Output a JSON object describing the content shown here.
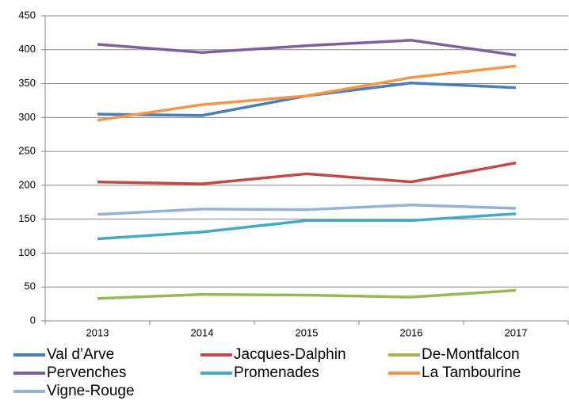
{
  "chart_data": {
    "type": "line",
    "categories": [
      "2013",
      "2014",
      "2015",
      "2016",
      "2017"
    ],
    "series": [
      {
        "name": "Val d’Arve",
        "color": "#4a7ebb",
        "values": [
          305,
          303,
          332,
          351,
          344
        ]
      },
      {
        "name": "Jacques-Dalphin",
        "color": "#be4b48",
        "values": [
          205,
          202,
          217,
          205,
          233
        ]
      },
      {
        "name": "De-Montfalcon",
        "color": "#98b954",
        "values": [
          33,
          39,
          38,
          35,
          45
        ]
      },
      {
        "name": "Pervenches",
        "color": "#7d60a0",
        "values": [
          408,
          396,
          406,
          414,
          392
        ]
      },
      {
        "name": "Promenades",
        "color": "#46aac5",
        "values": [
          121,
          131,
          148,
          148,
          158
        ]
      },
      {
        "name": "La Tambourine",
        "color": "#f79646",
        "values": [
          296,
          319,
          332,
          359,
          376
        ]
      },
      {
        "name": "Vigne-Rouge",
        "color": "#95b3d7",
        "values": [
          157,
          165,
          164,
          171,
          166
        ]
      }
    ],
    "ylim": [
      0,
      450
    ],
    "yticks": [
      0,
      50,
      100,
      150,
      200,
      250,
      300,
      350,
      400,
      450
    ],
    "grid": true,
    "legend": "bottom"
  }
}
